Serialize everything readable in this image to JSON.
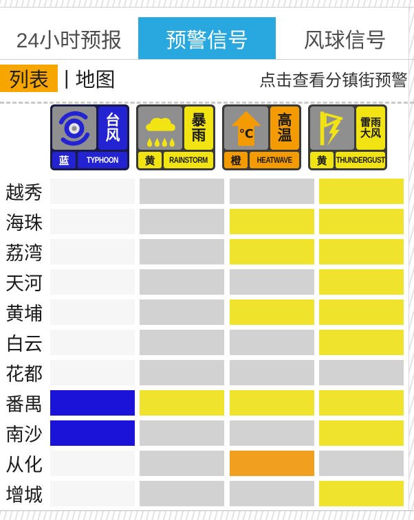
{
  "header": {
    "tabs": [
      {
        "id": "forecast-24h",
        "label": "24小时预报",
        "active": false
      },
      {
        "id": "warning-signals",
        "label": "预警信号",
        "active": true
      },
      {
        "id": "windball-signals",
        "label": "风球信号",
        "active": false
      }
    ]
  },
  "subheader": {
    "list_label": "列表",
    "separator": "|",
    "map_label": "地图",
    "right_link": "点击查看分镇街预警"
  },
  "warning_types": [
    {
      "id": "typhoon",
      "name_cn": "台风",
      "name_en": "TYPHOON",
      "level_cn": "蓝",
      "level_color": "#2323d2",
      "text_color": "#ffffff",
      "frame_color": "#1a1a46",
      "symbol_text": ""
    },
    {
      "id": "rainstorm",
      "name_cn": "暴雨",
      "name_en": "RAINSTORM",
      "level_cn": "黄",
      "level_color": "#f2e412",
      "text_color": "#1a1a1a",
      "frame_color": "#3a3a3a",
      "symbol_text": ""
    },
    {
      "id": "heatwave",
      "name_cn": "高温",
      "name_en": "HEATWAVE",
      "level_cn": "橙",
      "level_color": "#f39b00",
      "text_color": "#1a1a1a",
      "frame_color": "#3a3a3a",
      "symbol_text": "℃"
    },
    {
      "id": "thundergust",
      "name_cn": "雷雨大风",
      "name_en": "THUNDERGUST",
      "level_cn": "黄",
      "level_color": "#f2e412",
      "text_color": "#1a1a1a",
      "frame_color": "#3a3a3a",
      "symbol_text": ""
    }
  ],
  "districts": [
    {
      "name": "越秀",
      "levels": [
        null,
        null,
        null,
        "yellow"
      ]
    },
    {
      "name": "海珠",
      "levels": [
        null,
        null,
        "yellow",
        "yellow"
      ]
    },
    {
      "name": "荔湾",
      "levels": [
        null,
        null,
        "yellow",
        "yellow"
      ]
    },
    {
      "name": "天河",
      "levels": [
        null,
        null,
        null,
        "yellow"
      ]
    },
    {
      "name": "黄埔",
      "levels": [
        null,
        null,
        "yellow",
        "yellow"
      ]
    },
    {
      "name": "白云",
      "levels": [
        null,
        null,
        null,
        "yellow"
      ]
    },
    {
      "name": "花都",
      "levels": [
        null,
        null,
        null,
        null
      ]
    },
    {
      "name": "番禺",
      "levels": [
        "blue",
        "yellow",
        "yellow",
        "yellow"
      ]
    },
    {
      "name": "南沙",
      "levels": [
        "blue",
        null,
        null,
        "yellow"
      ]
    },
    {
      "name": "从化",
      "levels": [
        null,
        null,
        "orange",
        null
      ]
    },
    {
      "name": "增城",
      "levels": [
        null,
        null,
        null,
        "yellow"
      ]
    }
  ],
  "colors": {
    "tab_active": "#29a8e0",
    "badge_orange": "#f7a600",
    "cell_yellow": "#f0e32e",
    "cell_blue": "#1c13d8",
    "cell_orange": "#f0a01e",
    "cell_none": "#d2d2d2",
    "cell_none_typhoon": "#f6f6f6"
  }
}
